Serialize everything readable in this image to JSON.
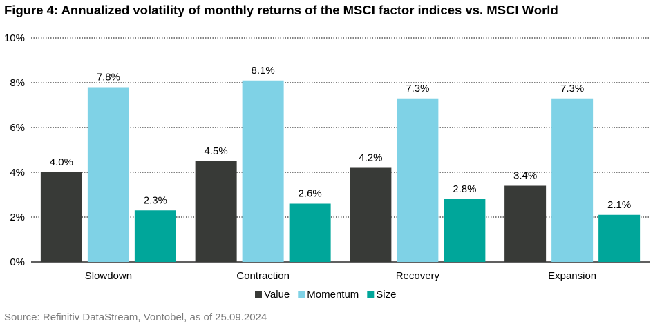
{
  "title": "Figure 4: Annualized volatility of monthly returns of the MSCI factor indices vs. MSCI World",
  "source": "Source: Refinitiv DataStream, Vontobel, as of 25.09.2024",
  "chart_data": {
    "type": "bar",
    "categories": [
      "Slowdown",
      "Contraction",
      "Recovery",
      "Expansion"
    ],
    "series": [
      {
        "name": "Value",
        "color": "#383a37",
        "values": [
          4.0,
          4.5,
          4.2,
          3.4
        ],
        "labels": [
          "4.0%",
          "4.5%",
          "4.2%",
          "3.4%"
        ]
      },
      {
        "name": "Momentum",
        "color": "#7fd2e6",
        "values": [
          7.8,
          8.1,
          7.3,
          7.3
        ],
        "labels": [
          "7.8%",
          "8.1%",
          "7.3%",
          "7.3%"
        ]
      },
      {
        "name": "Size",
        "color": "#00a69a",
        "values": [
          2.3,
          2.6,
          2.8,
          2.1
        ],
        "labels": [
          "2.3%",
          "2.6%",
          "2.8%",
          "2.1%"
        ]
      }
    ],
    "ylim": [
      0,
      10
    ],
    "yticks": [
      0,
      2,
      4,
      6,
      8,
      10
    ],
    "ytick_labels": [
      "0%",
      "2%",
      "4%",
      "6%",
      "8%",
      "10%"
    ],
    "grid": true,
    "legend": "bottom-center",
    "xlabel": "",
    "ylabel": ""
  }
}
